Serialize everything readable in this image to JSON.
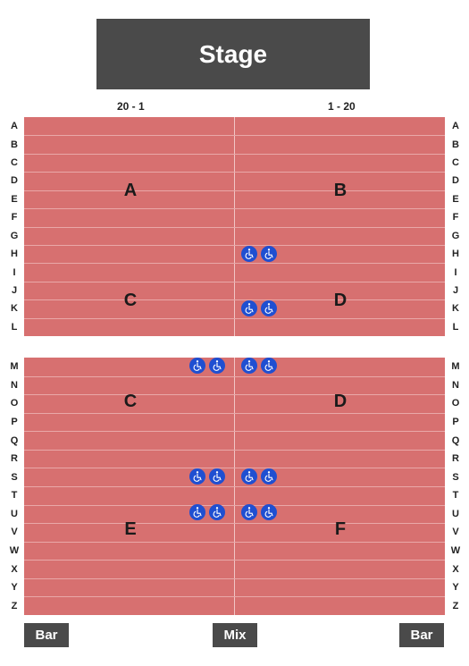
{
  "stage": {
    "label": "Stage"
  },
  "seat_ranges": {
    "left": "20 - 1",
    "right": "1 - 20"
  },
  "blocks": [
    {
      "name": "front",
      "rows": [
        "A",
        "B",
        "C",
        "D",
        "E",
        "F",
        "G",
        "H",
        "I",
        "J",
        "K",
        "L"
      ]
    },
    {
      "name": "rear",
      "rows": [
        "M",
        "N",
        "O",
        "P",
        "Q",
        "R",
        "S",
        "T",
        "U",
        "V",
        "W",
        "X",
        "Y",
        "Z"
      ]
    }
  ],
  "sections": {
    "a": "A",
    "b": "B",
    "c_front": "C",
    "d_front": "D",
    "c_rear": "C",
    "d_rear": "D",
    "e": "E",
    "f": "F"
  },
  "wheelchair_icon": "wheelchair-icon",
  "wheelchair_color": "#1f4fd1",
  "seat_color": "#d77070",
  "buttons": {
    "bar_left": "Bar",
    "mix": "Mix",
    "bar_right": "Bar"
  }
}
